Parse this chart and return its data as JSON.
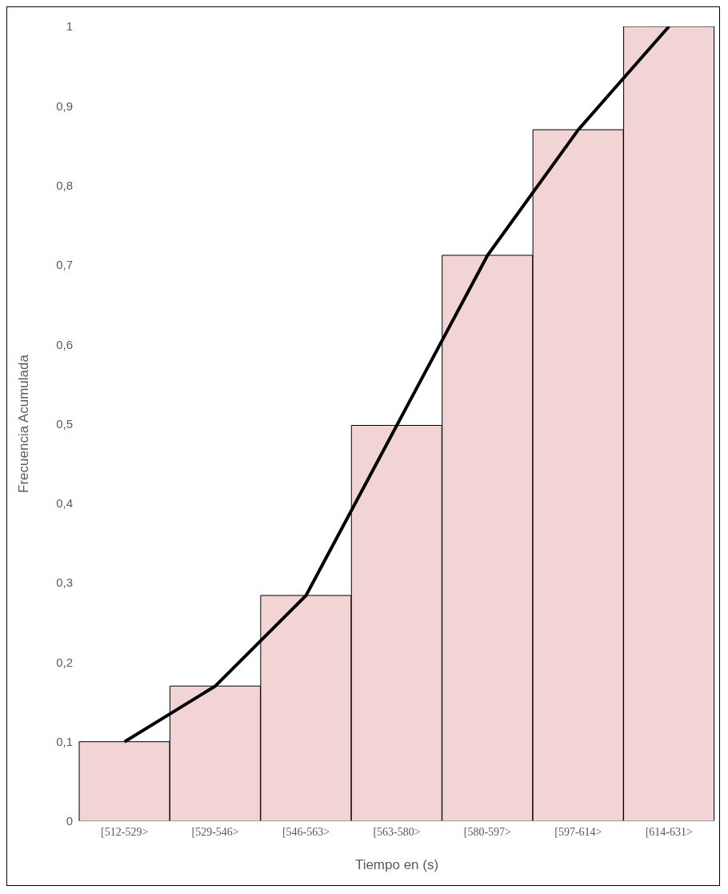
{
  "chart_data": {
    "type": "bar",
    "xlabel": "Tiempo en (s)",
    "ylabel": "Frecuencia Acumulada",
    "categories": [
      "[512-529>",
      "[529-546>",
      "[546-563>",
      "[563-580>",
      "[580-597>",
      "[597-614>",
      "[614-631>"
    ],
    "series": [
      {
        "color": "#f2d4d4",
        "values": [
          0.1,
          0.17,
          0.284,
          0.498,
          0.712,
          0.87,
          1.0
        ]
      },
      {
        "type": "line",
        "color": "#000000",
        "values": [
          0.1,
          0.17,
          0.284,
          0.498,
          0.712,
          0.87,
          1.0
        ]
      }
    ],
    "ylim": [
      0,
      1
    ],
    "yticks": [
      0,
      {
        "value": 0.1,
        "label": "0,1"
      },
      {
        "value": 0.2,
        "label": "0,2"
      },
      {
        "value": 0.3,
        "label": "0,3"
      },
      {
        "value": 0.4,
        "label": "0,4"
      },
      {
        "value": 0.5,
        "label": "0,5"
      },
      {
        "value": 0.6,
        "label": "0,6"
      },
      {
        "value": 0.7,
        "label": "0,7"
      },
      {
        "value": 0.8,
        "label": "0,8"
      },
      {
        "value": 0.9,
        "label": "0,9"
      },
      1
    ],
    "grid": false,
    "legend": false,
    "marker": "none",
    "line_style": "solid"
  }
}
